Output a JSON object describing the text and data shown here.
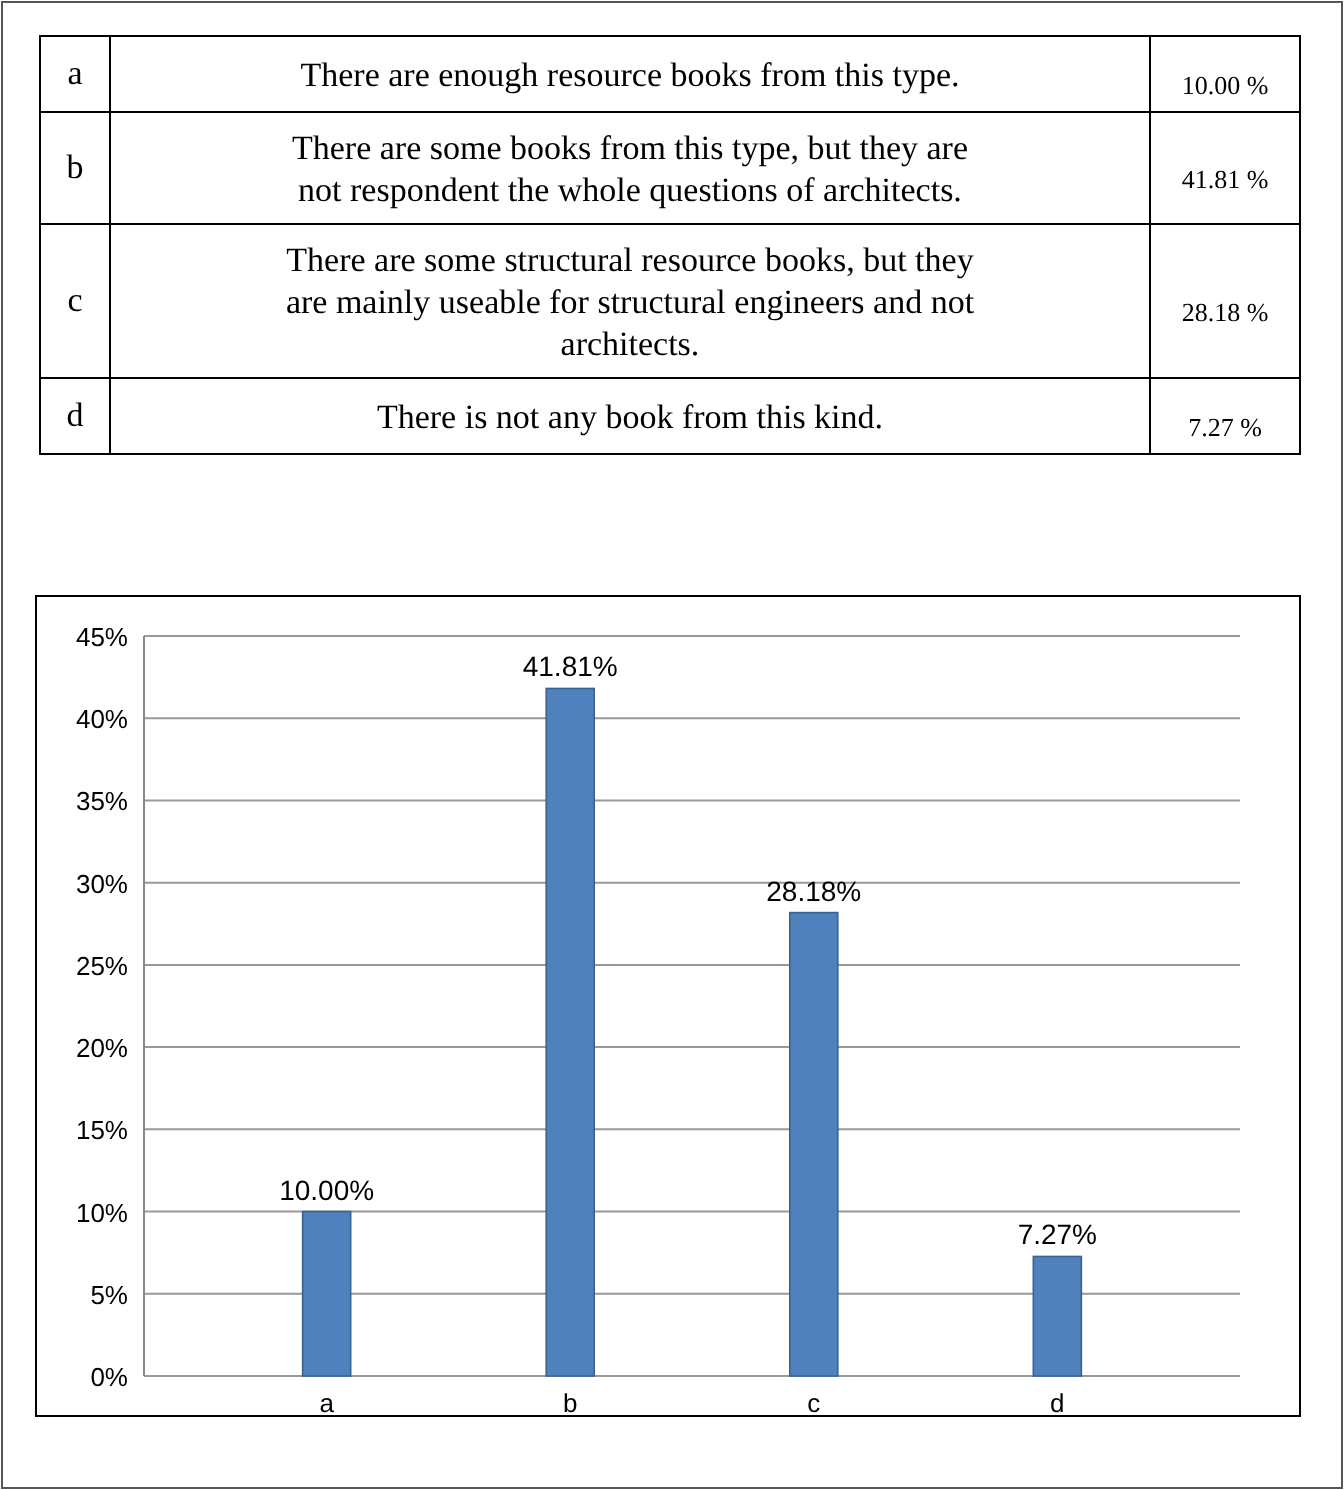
{
  "chart_data": {
    "type": "bar",
    "categories": [
      "a",
      "b",
      "c",
      "d"
    ],
    "values": [
      10.0,
      41.81,
      28.18,
      7.27
    ],
    "value_labels": [
      "10.00%",
      "41.81%",
      "28.18%",
      "7.27%"
    ],
    "color": "#4f81bd",
    "ylim": [
      0,
      45
    ],
    "yticks": [
      {
        "value": 0,
        "label": "0%"
      },
      {
        "value": 5,
        "label": "5%"
      },
      {
        "value": 10,
        "label": "10%"
      },
      {
        "value": 15,
        "label": "15%"
      },
      {
        "value": 20,
        "label": "20%"
      },
      {
        "value": 25,
        "label": "25%"
      },
      {
        "value": 30,
        "label": "30%"
      },
      {
        "value": 35,
        "label": "35%"
      },
      {
        "value": 40,
        "label": "40%"
      },
      {
        "value": 45,
        "label": "45%"
      }
    ],
    "grid": "y",
    "annotations": [
      "There are enough resource books from this type.",
      "There are some books from this type, but they are not respondent the whole questions of architects.",
      "There are some structural resource books, but they are mainly useable for structural engineers and not architects.",
      "There is not any book from this kind.",
      "10.00 %",
      "41.81 %",
      "28.18 %",
      "7.27 %"
    ]
  }
}
